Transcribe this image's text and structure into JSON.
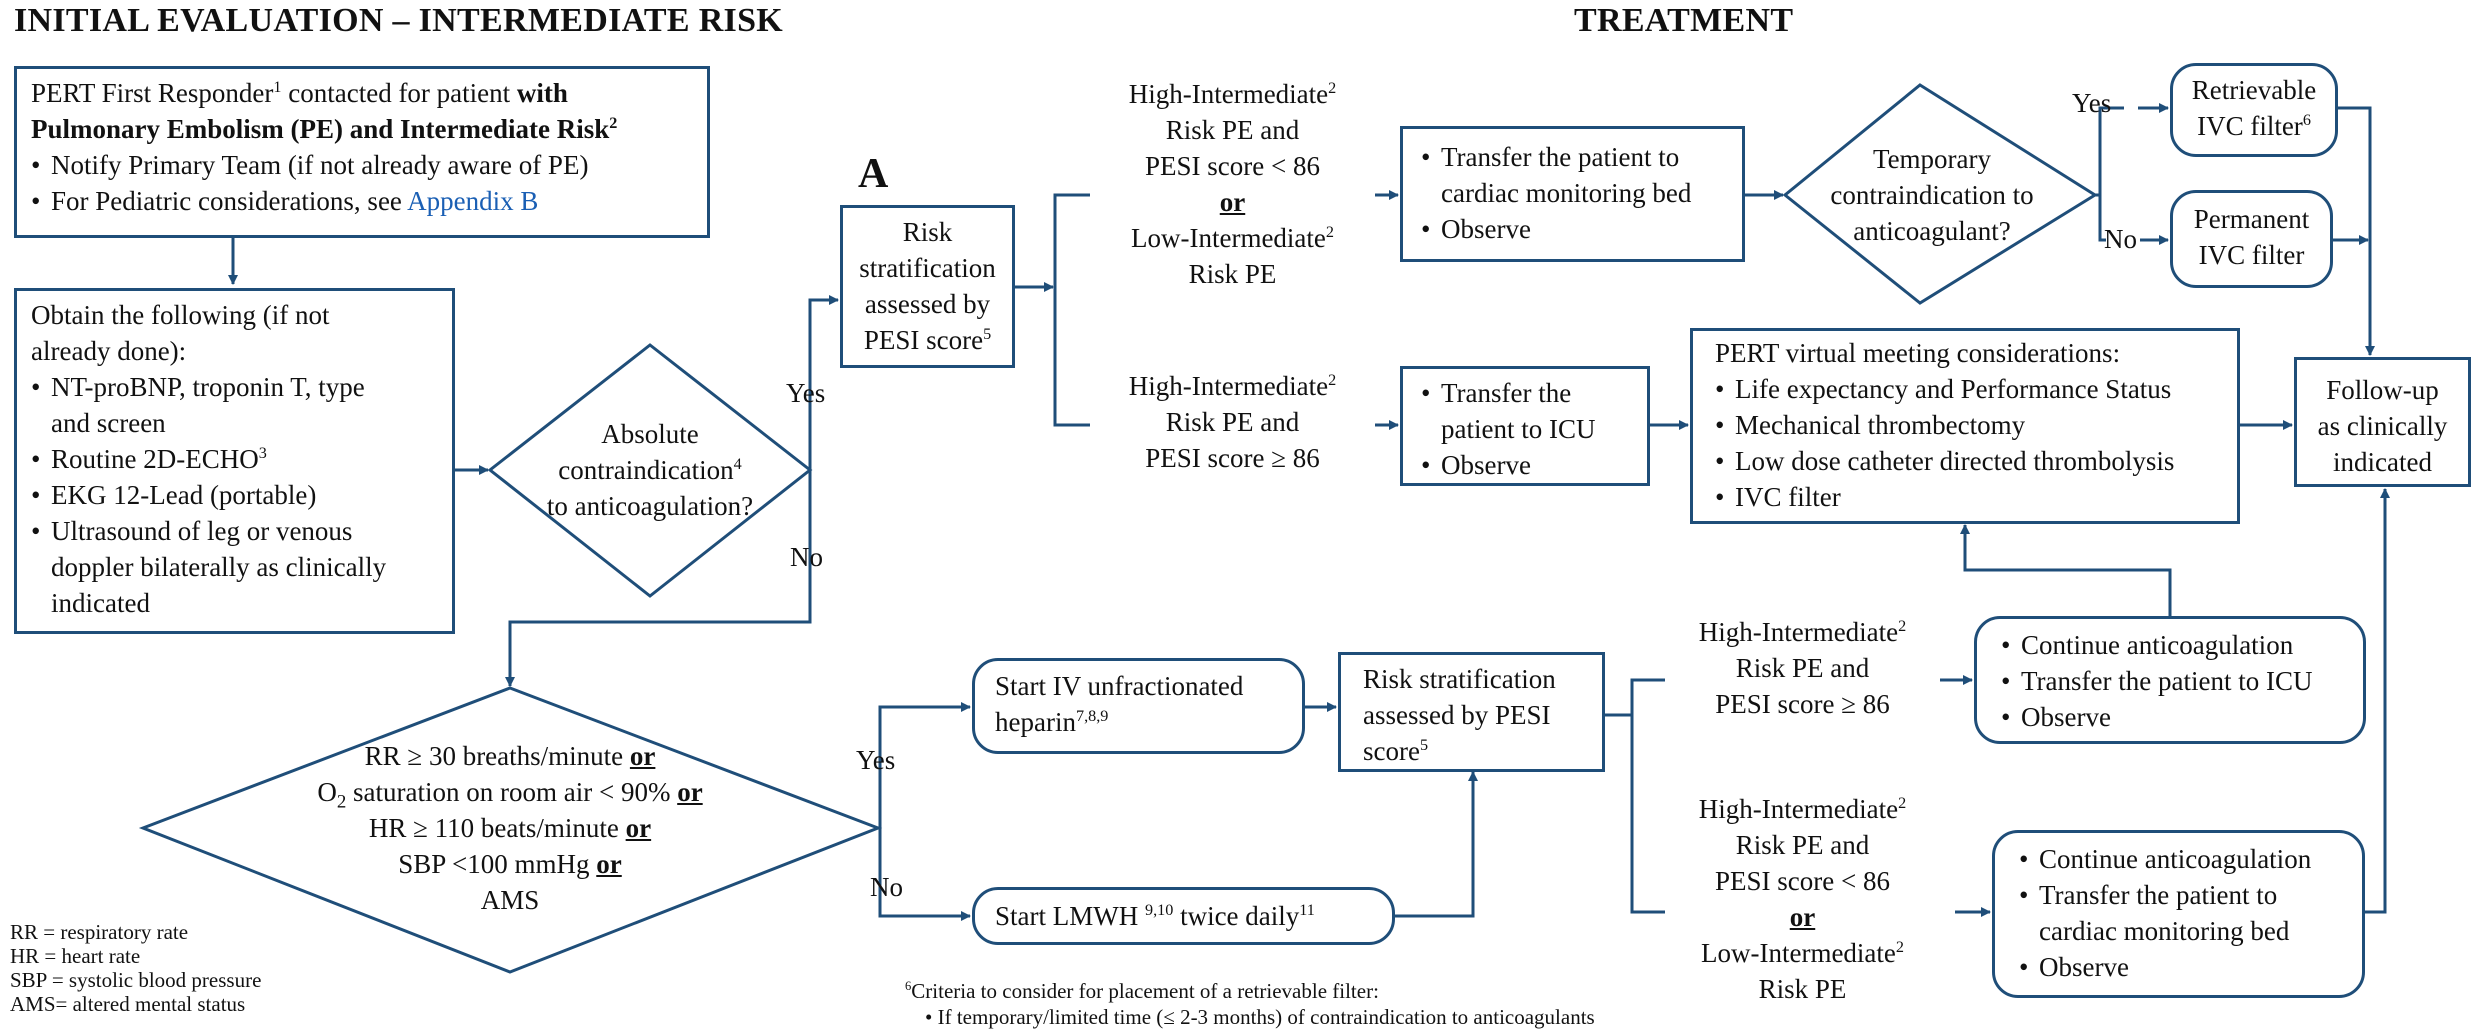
{
  "headers": {
    "initial_eval": "INITIAL EVALUATION – INTERMEDIATE RISK",
    "treatment": "TREATMENT",
    "section_a": "A"
  },
  "pert_box": {
    "line1_pre": "PERT First Responder",
    "line1_sup": "1",
    "line1_post": " contacted for patient ",
    "line1_bold": "with",
    "line2_bold": "Pulmonary Embolism (PE) and Intermediate Risk",
    "line2_sup": "2",
    "bullet1": "Notify Primary Team (if not already aware of PE)",
    "bullet2_pre": "For Pediatric considerations, see ",
    "bullet2_link": "Appendix B"
  },
  "obtain_box": {
    "line1": "Obtain the following (if not",
    "line2": "already done):",
    "bullet1a": "NT-proBNP, troponin T, type",
    "bullet1b": "and screen",
    "bullet2": "Routine 2D-ECHO",
    "bullet2_sup": "3",
    "bullet3": "EKG 12-Lead (portable)",
    "bullet4a": "Ultrasound of leg or venous",
    "bullet4b": "doppler bilaterally as clinically",
    "bullet4c": "indicated"
  },
  "contra_diamond": {
    "line1": "Absolute",
    "line2": "contraindication",
    "line2_sup": "4",
    "line3": "to anticoagulation?"
  },
  "risk_box_a": {
    "line1": "Risk",
    "line2": "stratification",
    "line3": "assessed by",
    "line4": "PESI score",
    "line4_sup": "5"
  },
  "branch_top": {
    "line1": "High-Intermediate",
    "line1_sup": "2",
    "line2": "Risk PE and",
    "line3": "PESI score < 86",
    "or": "or",
    "line4": "Low-Intermediate",
    "line4_sup": "2",
    "line5": "Risk PE"
  },
  "branch_mid": {
    "line1": "High-Intermediate",
    "line1_sup": "2",
    "line2": "Risk PE and",
    "line3": "PESI score ≥ 86"
  },
  "cardiac_box": {
    "bullet1a": "Transfer the patient to",
    "bullet1b": "cardiac monitoring bed",
    "bullet2": "Observe"
  },
  "temp_diamond": {
    "line1": "Temporary",
    "line2": "contraindication to",
    "line3": "anticoagulant?"
  },
  "retrievable_box": {
    "line1": "Retrievable",
    "line2": "IVC filter",
    "line2_sup": "6"
  },
  "permanent_box": {
    "line1": "Permanent",
    "line2": "IVC filter"
  },
  "icu_box": {
    "bullet1a": "Transfer the",
    "bullet1b": "patient to ICU",
    "bullet2": "Observe"
  },
  "pert_meeting_box": {
    "title": "PERT virtual meeting considerations:",
    "bullet1": "Life expectancy and Performance Status",
    "bullet2": "Mechanical thrombectomy",
    "bullet3": "Low dose catheter directed thrombolysis",
    "bullet4": "IVC filter"
  },
  "followup_box": {
    "line1": "Follow-up",
    "line2": "as clinically",
    "line3": "indicated"
  },
  "vitals_diamond": {
    "line1": "RR ≥ 30 breaths/minute ",
    "line2_pre": "O",
    "line2_sub": "2",
    "line2_post": " saturation on room air < 90% ",
    "line3": "HR ≥ 110 beats/minute ",
    "line4": "SBP <100 mmHg ",
    "line5": "AMS",
    "or": "or"
  },
  "heparin_box": {
    "line1": "Start IV unfractionated",
    "line2": "heparin",
    "line2_sup": "7,8,9"
  },
  "lmwh_box": {
    "pre": "Start LMWH ",
    "sup1": "9,10",
    "mid": " twice daily",
    "sup2": "11"
  },
  "risk_box_b": {
    "line1": "Risk stratification",
    "line2": "assessed by PESI",
    "line3": "score",
    "line3_sup": "5"
  },
  "branch_low1": {
    "line1": "High-Intermediate",
    "line1_sup": "2",
    "line2": "Risk PE and",
    "line3": "PESI score ≥ 86"
  },
  "branch_low2": {
    "line1": "High-Intermediate",
    "line1_sup": "2",
    "line2": "Risk PE and",
    "line3": "PESI score < 86",
    "or": "or",
    "line4": "Low-Intermediate",
    "line4_sup": "2",
    "line5": "Risk PE"
  },
  "continue_icu_box": {
    "bullet1": "Continue anticoagulation",
    "bullet2": "Transfer the patient to ICU",
    "bullet3": "Observe"
  },
  "continue_cardiac_box": {
    "bullet1": "Continue anticoagulation",
    "bullet2a": "Transfer the patient to",
    "bullet2b": "cardiac monitoring bed",
    "bullet3": "Observe"
  },
  "decision_labels": {
    "yes": "Yes",
    "no": "No"
  },
  "legend": {
    "rr": "RR = respiratory rate",
    "hr": "HR = heart rate",
    "sbp": "SBP = systolic blood pressure",
    "ams": "AMS= altered mental status"
  },
  "footnote": {
    "sup": "6",
    "line1": "Criteria to consider for placement of a retrievable filter:",
    "bullet1": "If temporary/limited time (≤ 2-3 months) of contraindication to anticoagulants"
  },
  "colors": {
    "line": "#1f4e79",
    "link": "#1a5fb4"
  }
}
